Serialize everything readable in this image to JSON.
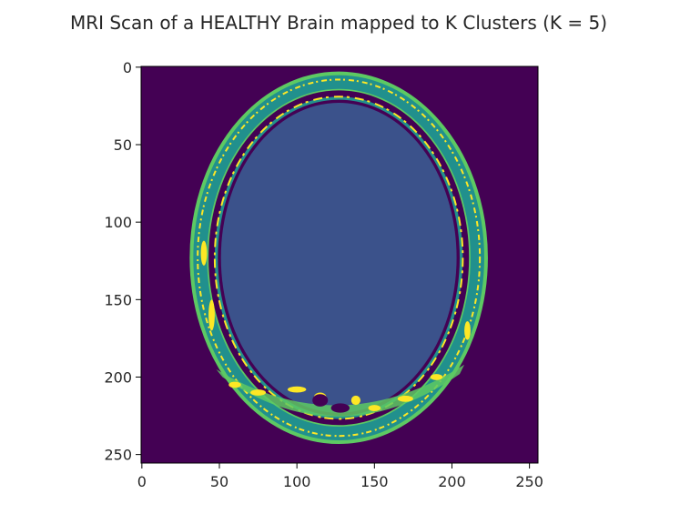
{
  "chart_data": {
    "type": "heatmap",
    "title": "MRI Scan of a HEALTHY Brain mapped to K Clusters (K = 5)",
    "xlabel": "",
    "ylabel": "",
    "xlim": [
      0,
      255
    ],
    "ylim": [
      255,
      0
    ],
    "x_ticks": [
      0,
      50,
      100,
      150,
      200,
      250
    ],
    "y_ticks": [
      0,
      50,
      100,
      150,
      200,
      250
    ],
    "x_tick_labels": [
      "0",
      "50",
      "100",
      "150",
      "200",
      "250"
    ],
    "y_tick_labels": [
      "0",
      "50",
      "100",
      "150",
      "200",
      "250"
    ],
    "grid": false,
    "legend": "none",
    "colormap": "viridis",
    "clusters": 5,
    "cluster_colors": [
      "#440154",
      "#3b528b",
      "#21908d",
      "#5dc963",
      "#fde725"
    ],
    "image_size": [
      256,
      256
    ],
    "regions": {
      "head_center": [
        127,
        123
      ],
      "scalp_outer_radii": [
        95,
        119
      ],
      "scalp_green_inner_radii": [
        85,
        109
      ],
      "skull_dark_radii": [
        84,
        108
      ],
      "csf_ring_radii": [
        80,
        104
      ],
      "brain_radii": [
        76,
        100
      ]
    }
  }
}
